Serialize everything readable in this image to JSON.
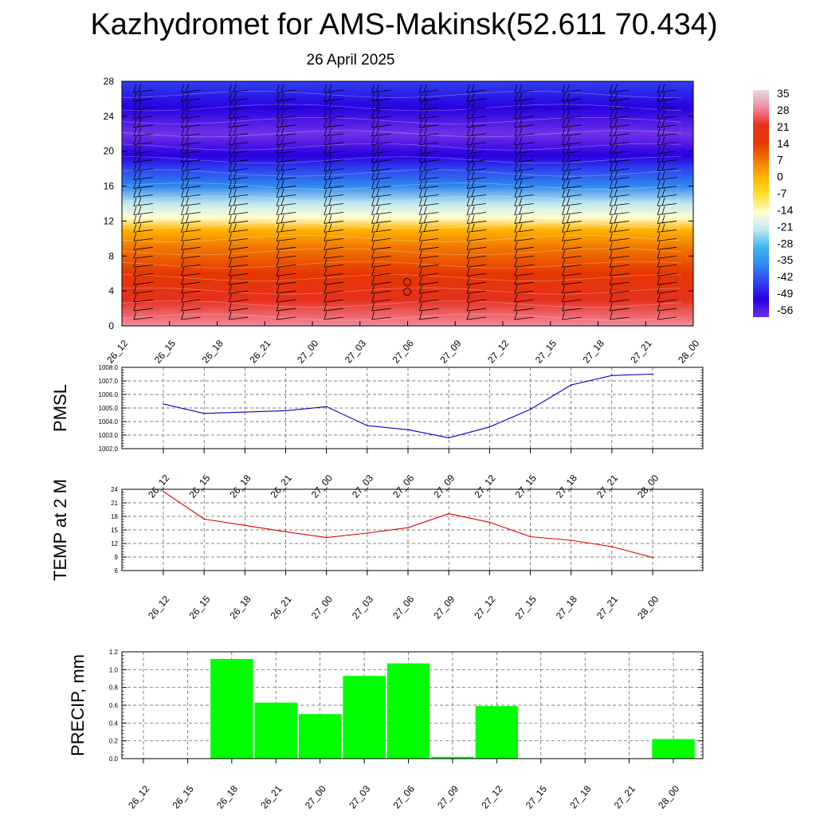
{
  "title": "Kazhydromet for AMS-Makinsk(52.611 70.434)",
  "subtitle": "26 April 2025",
  "time_labels": [
    "26_12",
    "26_15",
    "26_18",
    "26_21",
    "27_00",
    "27_03",
    "27_06",
    "27_09",
    "27_12",
    "27_15",
    "27_18",
    "27_21",
    "28_00"
  ],
  "colors": {
    "pmsl_line": "#0000cc",
    "temp_line": "#e00000",
    "precip_bar": "#00ff00",
    "grid": "#555555"
  },
  "chart_data": [
    {
      "type": "heatmap",
      "title": "",
      "ylim": [
        0,
        28
      ],
      "y_ticks": [
        0,
        4,
        8,
        12,
        16,
        20,
        24,
        28
      ],
      "x": [
        "26_12",
        "26_15",
        "26_18",
        "26_21",
        "27_00",
        "27_03",
        "27_06",
        "27_09",
        "27_12",
        "27_15",
        "27_18",
        "27_21",
        "28_00"
      ],
      "colorbar_labels": [
        "35",
        "28",
        "21",
        "14",
        "7",
        "0",
        "-7",
        "-14",
        "-21",
        "-28",
        "-35",
        "-42",
        "-49",
        "-56"
      ],
      "colorbar_colors": [
        "#e8dadd",
        "#f08aa0",
        "#e6301e",
        "#e63700",
        "#f07800",
        "#ffb400",
        "#ffe030",
        "#ffffd0",
        "#c0e8f0",
        "#40b8f0",
        "#3088f0",
        "#3040f0",
        "#2800e0",
        "#7030e8"
      ],
      "profile": [
        {
          "z": 0,
          "t": 28
        },
        {
          "z": 3,
          "t": 20
        },
        {
          "z": 6,
          "t": 12
        },
        {
          "z": 9,
          "t": 4
        },
        {
          "z": 11,
          "t": -4
        },
        {
          "z": 12.4,
          "t": -14
        },
        {
          "z": 14,
          "t": -24
        },
        {
          "z": 16,
          "t": -36
        },
        {
          "z": 18,
          "t": -48
        },
        {
          "z": 19.5,
          "t": -55
        },
        {
          "z": 22,
          "t": -58
        },
        {
          "z": 25,
          "t": -54
        },
        {
          "z": 28,
          "t": -48
        }
      ]
    },
    {
      "type": "line",
      "ylabel": "PMSL",
      "ylim": [
        1002.0,
        1008.0
      ],
      "y_ticks": [
        "1002.0",
        "1003.0",
        "1004.0",
        "1005.0",
        "1006.0",
        "1007.0",
        "1008.0"
      ],
      "categories": [
        "26_12",
        "26_15",
        "26_18",
        "26_21",
        "27_00",
        "27_03",
        "27_06",
        "27_09",
        "27_12",
        "27_15",
        "27_18",
        "27_21",
        "28_00"
      ],
      "values": [
        1005.3,
        1004.6,
        1004.7,
        1004.8,
        1005.1,
        1003.7,
        1003.4,
        1002.8,
        1003.6,
        1004.9,
        1006.7,
        1007.4,
        1007.5
      ]
    },
    {
      "type": "line",
      "ylabel": "TEMP at 2 M",
      "ylim": [
        6,
        24
      ],
      "y_ticks": [
        "6",
        "9",
        "12",
        "15",
        "18",
        "21",
        "24"
      ],
      "categories": [
        "26_12",
        "26_15",
        "26_18",
        "26_21",
        "27_00",
        "27_03",
        "27_06",
        "27_09",
        "27_12",
        "27_15",
        "27_18",
        "27_21",
        "28_00"
      ],
      "values": [
        23.5,
        17.4,
        16.0,
        14.6,
        13.3,
        14.3,
        15.5,
        18.6,
        16.7,
        13.5,
        12.7,
        11.3,
        8.9
      ]
    },
    {
      "type": "bar",
      "ylabel": "PRECIP, mm",
      "ylim": [
        0,
        1.2
      ],
      "y_ticks": [
        "0.0",
        "0.2",
        "0.4",
        "0.6",
        "0.8",
        "1.0",
        "1.2"
      ],
      "categories": [
        "26_12",
        "26_15",
        "26_18",
        "26_21",
        "27_00",
        "27_03",
        "27_06",
        "27_09",
        "27_12",
        "27_15",
        "27_18",
        "27_21",
        "28_00"
      ],
      "values": [
        0,
        0,
        1.12,
        0.63,
        0.5,
        0.93,
        1.07,
        0.02,
        0.59,
        0,
        0,
        0,
        0.22
      ]
    }
  ]
}
